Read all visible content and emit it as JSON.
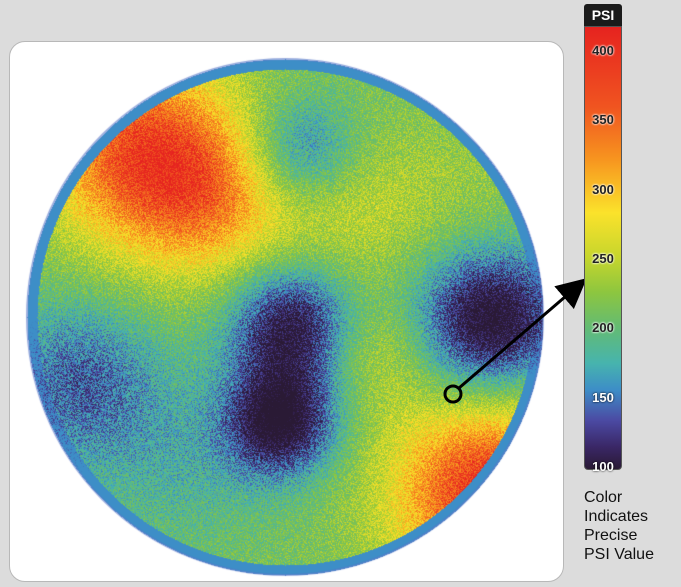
{
  "chart_data": {
    "type": "heatmap",
    "title": "",
    "colorbar": {
      "unit_label": "PSI",
      "ticks": [
        400,
        350,
        300,
        250,
        200,
        150,
        100
      ],
      "range": [
        100,
        420
      ]
    },
    "hotspots": [
      {
        "region": "upper-left band",
        "psi": 405
      },
      {
        "region": "lower-right edge",
        "psi": 410
      },
      {
        "region": "center-left low",
        "psi": 110
      },
      {
        "region": "right low",
        "psi": 115
      },
      {
        "region": "upper-center low",
        "psi": 165
      }
    ],
    "annotation": {
      "marker": "circle",
      "target_psi": 235
    }
  },
  "caption": {
    "lines": [
      "Color",
      "Indicates",
      "Precise",
      "PSI Value"
    ]
  },
  "colors": {
    "background": "#dcdcdc",
    "panel": "#ffffff",
    "arrow": "#000000"
  }
}
